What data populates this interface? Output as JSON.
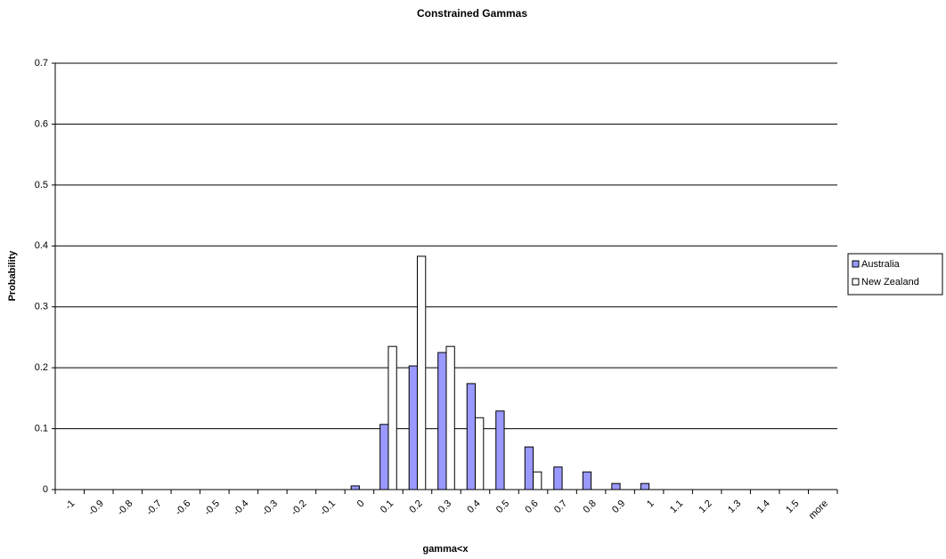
{
  "chart_data": {
    "type": "bar",
    "title": "Constrained Gammas",
    "x_label": "gamma<x",
    "y_label": "Probability",
    "categories": [
      "-1",
      "-0.9",
      "-0.8",
      "-0.7",
      "-0.6",
      "-0.5",
      "-0.4",
      "-0.3",
      "-0.2",
      "-0.1",
      "0",
      "0.1",
      "0.2",
      "0.3",
      "0.4",
      "0.5",
      "0.6",
      "0.7",
      "0.8",
      "0.9",
      "1",
      "1.1",
      "1.2",
      "1.3",
      "1.4",
      "1.5",
      "more"
    ],
    "series": [
      {
        "name": "Australia",
        "color": "#9999ff",
        "values": [
          0,
          0,
          0,
          0,
          0,
          0,
          0,
          0,
          0,
          0,
          0.006,
          0.107,
          0.203,
          0.225,
          0.174,
          0.129,
          0.07,
          0.037,
          0.029,
          0.01,
          0.01,
          0,
          0,
          0,
          0,
          0,
          0
        ]
      },
      {
        "name": "New Zealand",
        "color": "#ffffff",
        "values": [
          0,
          0,
          0,
          0,
          0,
          0,
          0,
          0,
          0,
          0,
          0,
          0.235,
          0.383,
          0.235,
          0.118,
          0,
          0.029,
          0,
          0,
          0,
          0,
          0,
          0,
          0,
          0,
          0,
          0
        ]
      }
    ],
    "ylim": [
      0,
      0.7
    ],
    "yticks": [
      0,
      0.1,
      0.2,
      0.3,
      0.4,
      0.5,
      0.6,
      0.7
    ],
    "grid": true,
    "legend": "right"
  }
}
